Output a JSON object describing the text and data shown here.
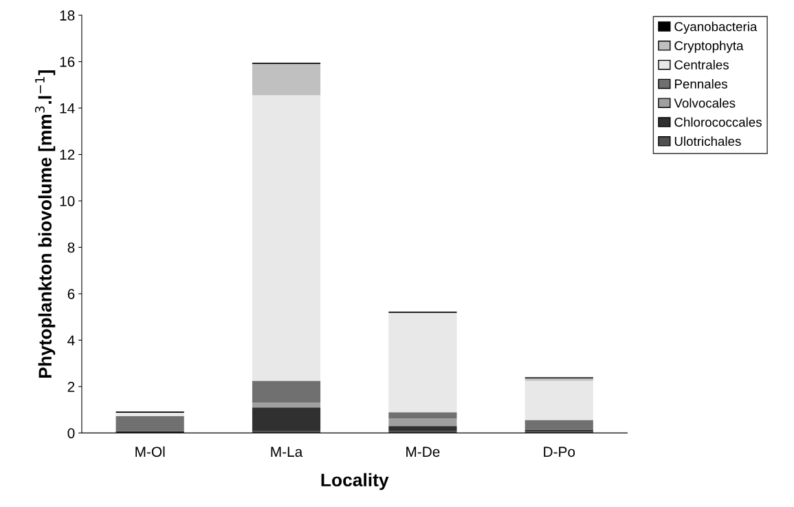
{
  "chart_data": {
    "type": "bar",
    "stacked": true,
    "xlabel": "Locality",
    "ylabel": "Phytoplankton biovolume [mm$^{3}$.l$^{−1}$]",
    "categories": [
      "M-Ol",
      "M-La",
      "M-De",
      "D-Po"
    ],
    "series": [
      {
        "name": "Ulotrichales",
        "color": "#505050",
        "values": [
          null,
          0.08,
          0.08,
          0.06
        ]
      },
      {
        "name": "Chlorococcales",
        "color": "#303030",
        "values": [
          0.08,
          1.02,
          0.22,
          0.08
        ]
      },
      {
        "name": "Volvocales",
        "color": "#a0a0a0",
        "values": [
          null,
          0.2,
          0.32,
          null
        ]
      },
      {
        "name": "Pennales",
        "color": "#707070",
        "values": [
          0.65,
          0.95,
          0.27,
          0.42
        ]
      },
      {
        "name": "Centrales",
        "color": "#e8e8e8",
        "values": [
          0.14,
          12.3,
          4.29,
          1.69
        ]
      },
      {
        "name": "Cryptophyta",
        "color": "#c0c0c0",
        "values": [
          null,
          1.35,
          null,
          0.1
        ]
      },
      {
        "name": "Cyanobacteria",
        "color": "#000000",
        "values": [
          0.05,
          0.05,
          0.05,
          0.05
        ]
      }
    ],
    "ylim": [
      0,
      18
    ],
    "yticks": [
      0,
      2,
      4,
      6,
      8,
      10,
      12,
      14,
      16,
      18
    ],
    "grid": false,
    "legend": "right"
  }
}
